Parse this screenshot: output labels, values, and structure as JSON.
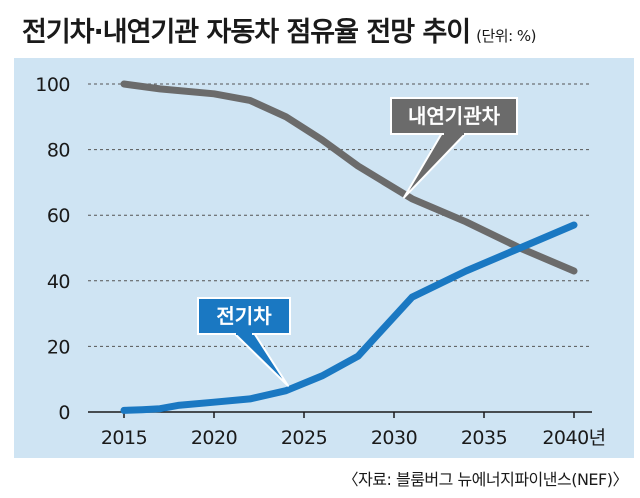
{
  "header": {
    "title": "전기차·내연기관 자동차 점유율 전망 추이",
    "unit": "(단위: %)"
  },
  "footer": {
    "source": "〈자료: 블룸버그 뉴에너지파이낸스(NEF)〉"
  },
  "colors": {
    "background": "#cfe4f3",
    "ev_line": "#1a78c2",
    "ice_line": "#6b6b6b",
    "grid": "#555555"
  },
  "chart_data": {
    "type": "line",
    "title": "전기차·내연기관 자동차 점유율 전망 추이",
    "xlabel": "",
    "ylabel": "",
    "unit": "%",
    "xlim": [
      2013,
      2041
    ],
    "ylim": [
      0,
      100
    ],
    "x_ticks": [
      "2015",
      "2020",
      "2025",
      "2030",
      "2035",
      "2040년"
    ],
    "x_tick_values": [
      2015,
      2020,
      2025,
      2030,
      2035,
      2040
    ],
    "y_ticks": [
      0,
      20,
      40,
      60,
      80,
      100
    ],
    "grid": "horizontal dashed",
    "series": [
      {
        "name": "내연기관차",
        "color": "#6b6b6b",
        "x": [
          2015,
          2017,
          2020,
          2022,
          2024,
          2026,
          2028,
          2031,
          2034,
          2037,
          2040
        ],
        "y": [
          100,
          98.5,
          97,
          95,
          90,
          83,
          75,
          65,
          58,
          50,
          43
        ]
      },
      {
        "name": "전기차",
        "color": "#1a78c2",
        "x": [
          2015,
          2016,
          2017,
          2018,
          2020,
          2022,
          2024,
          2026,
          2028,
          2031,
          2034,
          2037,
          2040
        ],
        "y": [
          0.5,
          0.7,
          1,
          2,
          3,
          4,
          6.5,
          11,
          17,
          35,
          43,
          50,
          57
        ]
      }
    ]
  }
}
